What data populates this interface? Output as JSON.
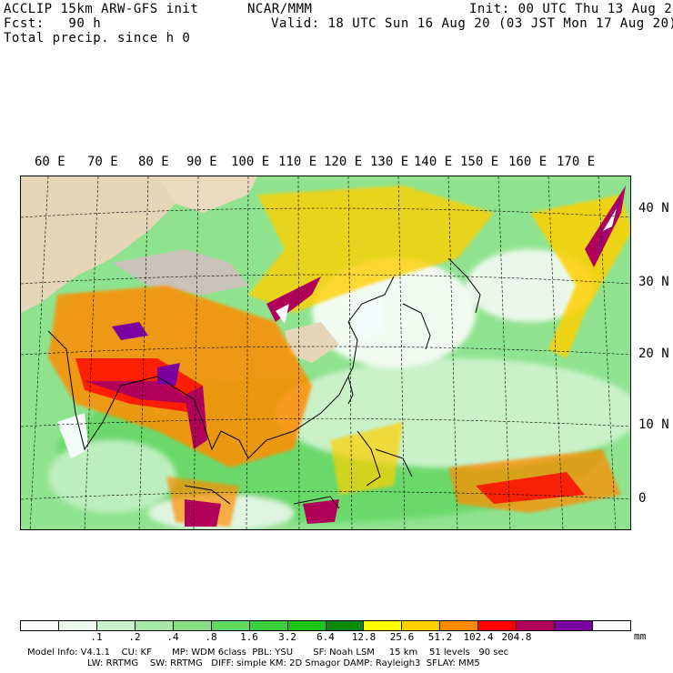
{
  "header": {
    "model": "ACCLIP 15km ARW-GFS init",
    "center": "NCAR/MMM",
    "init": "Init: 00 UTC Thu 13 Aug 20",
    "fcst": "Fcst:   90 h",
    "valid": "Valid: 18 UTC Sun 16 Aug 20 (03 JST Mon 17 Aug 20)",
    "field": "Total precip. since h 0"
  },
  "map": {
    "lon_labels": [
      "60 E",
      "70 E",
      "80 E",
      "90 E",
      "100 E",
      "110 E",
      "120 E",
      "130 E",
      "140 E",
      "150 E",
      "160 E",
      "170 E"
    ],
    "lat_labels": [
      "40 N",
      "30 N",
      "20 N",
      "10 N",
      "0"
    ]
  },
  "legend": {
    "colors": [
      "#ffffff",
      "#ecf9ec",
      "#c9f2c9",
      "#a7eaa7",
      "#84e284",
      "#5fd95f",
      "#3ccf3c",
      "#19c619",
      "#0a8a0a",
      "#ffff00",
      "#ffd000",
      "#ff8c00",
      "#ff0000",
      "#b0005a",
      "#7a00a0",
      "#ffffff"
    ],
    "ticks": [
      ".1",
      ".2",
      ".4",
      ".8",
      "1.6",
      "3.2",
      "6.4",
      "12.8",
      "25.6",
      "51.2",
      "102.4",
      "204.8"
    ],
    "unit": "mm"
  },
  "footer": {
    "line1": "Model Info: V4.1.1    CU: KF       MP: WDM 6class  PBL: YSU       SF: Noah LSM     15 km    51 levels   90 sec",
    "line2": "LW: RRTMG    SW: RRTMG   DIFF: simple KM: 2D Smagor DAMP: Rayleigh3  SFLAY: MM5"
  }
}
